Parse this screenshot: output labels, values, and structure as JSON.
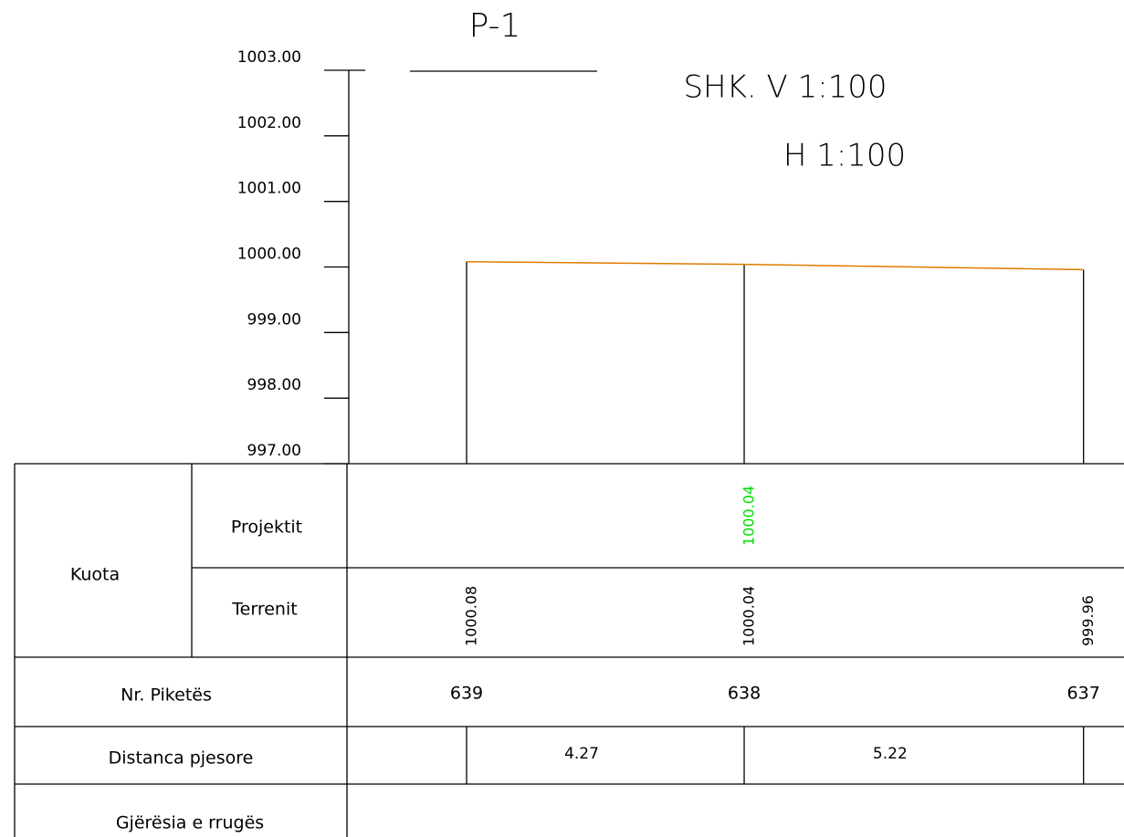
{
  "title": "P-1",
  "scale": {
    "vertical": "SHK. V 1:100",
    "horizontal": "H 1:100"
  },
  "axis": {
    "ylim": [
      997,
      1003
    ],
    "yticks": [
      {
        "value": 1003,
        "label": "1003.00"
      },
      {
        "value": 1002,
        "label": "1002.00"
      },
      {
        "value": 1001,
        "label": "1001.00"
      },
      {
        "value": 1000,
        "label": "1000.00"
      },
      {
        "value": 999,
        "label": "999.00"
      },
      {
        "value": 998,
        "label": "998.00"
      },
      {
        "value": 997,
        "label": "997.00"
      }
    ]
  },
  "table": {
    "kuota": "Kuota",
    "projektit": "Projektit",
    "terrenit": "Terrenit",
    "stations_label": "Nr. Piketës",
    "distance_label": "Distanca pjesore",
    "width_label": "Gjërësia e rrugës"
  },
  "stations": [
    "639",
    "638",
    "637"
  ],
  "terrain": [
    1000.08,
    1000.04,
    999.96
  ],
  "project": [
    null,
    1000.04,
    null
  ],
  "distances": [
    4.27,
    5.22
  ]
}
